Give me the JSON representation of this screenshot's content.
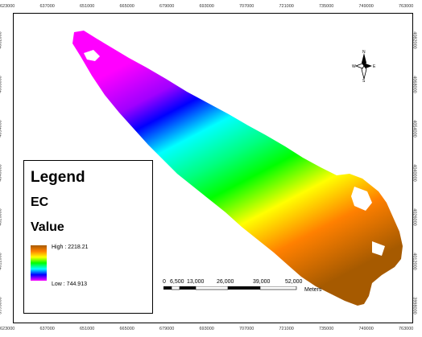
{
  "map": {
    "grid_labels_x": [
      "623000",
      "637000",
      "651000",
      "665000",
      "679000",
      "693000",
      "707000",
      "721000",
      "735000",
      "749000",
      "763000"
    ],
    "grid_labels_y": [
      "4082000",
      "4068000",
      "4054000",
      "4040000",
      "4026000",
      "4012000",
      "3998000"
    ],
    "raster_ramp_colors": [
      "#a65a00",
      "#ff8000",
      "#ffff00",
      "#00ff00",
      "#00ffff",
      "#0000ff",
      "#ff00ff"
    ]
  },
  "legend": {
    "title": "Legend",
    "layer": "EC",
    "field": "Value",
    "high_label": "High : 2218.21",
    "low_label": "Low : 744.913"
  },
  "north_arrow": {
    "icon": "north-arrow-icon",
    "n": "N",
    "s": "S",
    "e": "E",
    "w": "W"
  },
  "scale_bar": {
    "labels": [
      "0",
      "6,500",
      "13,000",
      "26,000",
      "39,000",
      "52,000"
    ],
    "units": "Meters"
  }
}
